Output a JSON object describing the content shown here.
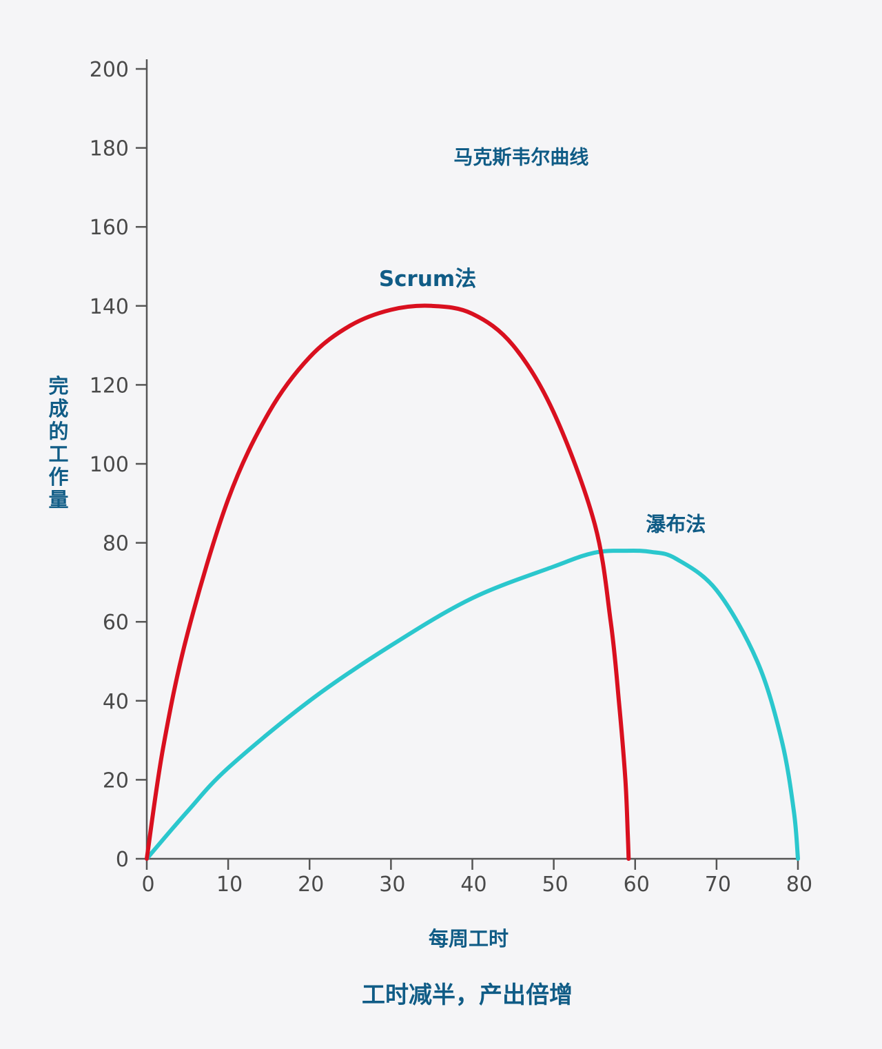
{
  "chart_data": {
    "type": "line",
    "title": "马克斯韦尔曲线",
    "subtitle": "工时减半，产出倍增",
    "xlabel": "每周工时",
    "ylabel": "完成的工作量",
    "xlim": [
      0,
      80
    ],
    "ylim": [
      0,
      200
    ],
    "xticks": [
      0,
      10,
      20,
      30,
      40,
      50,
      60,
      70,
      80
    ],
    "yticks": [
      0,
      20,
      40,
      60,
      80,
      100,
      120,
      140,
      160,
      180,
      200
    ],
    "grid": false,
    "legend": "none",
    "series": [
      {
        "name": "Scrum法",
        "color": "#d9101f",
        "x": [
          0,
          2,
          5,
          10,
          15,
          20,
          25,
          30,
          35,
          40,
          45,
          50,
          55,
          57,
          58,
          58.8,
          59.1,
          59.2
        ],
        "y": [
          0,
          28,
          57,
          91,
          113,
          127,
          135,
          139,
          140,
          138,
          130,
          113,
          85,
          60,
          40,
          20,
          6,
          0
        ]
      },
      {
        "name": "瀑布法",
        "color": "#2bc7cd",
        "x": [
          0,
          5,
          10,
          20,
          30,
          40,
          50,
          55,
          59,
          62,
          65,
          70,
          75,
          78,
          79.5,
          80
        ],
        "y": [
          0,
          12,
          23,
          40,
          54,
          66,
          74,
          77.5,
          78,
          77.7,
          76,
          68,
          50,
          30,
          12,
          0
        ]
      }
    ],
    "annotations": [
      {
        "text": "马克斯韦尔曲线",
        "x": 46,
        "y": 176
      },
      {
        "text": "Scrum法",
        "x": 34.5,
        "y": 145
      },
      {
        "text": "瀑布法",
        "x": 65,
        "y": 83
      }
    ]
  },
  "colors": {
    "background": "#f5f5f7",
    "axis": "#555555",
    "tick_text": "#4a4a4a",
    "annotation_text": "#105c86"
  }
}
